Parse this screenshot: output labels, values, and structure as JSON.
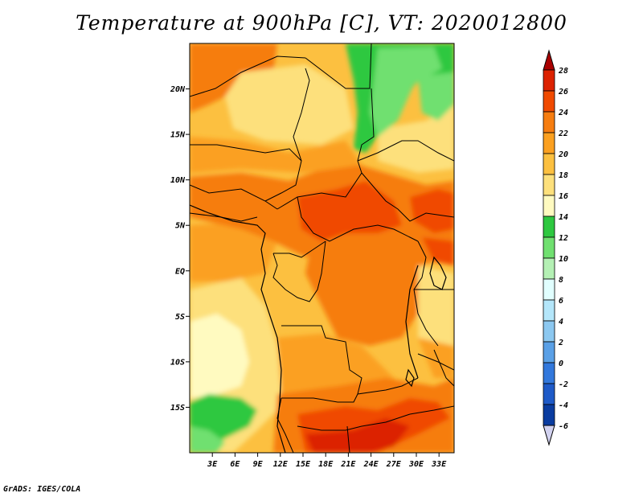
{
  "title": "Temperature at 900hPa [C], VT: 2020012800",
  "credit": "GrADS: IGES/COLA",
  "chart_data": {
    "type": "heatmap",
    "title": "Temperature at 900hPa [C], VT: 2020012800",
    "x_axis": {
      "unit": "longitude",
      "range": [
        0,
        35
      ],
      "ticks": [
        {
          "value": 3,
          "label": "3E"
        },
        {
          "value": 6,
          "label": "6E"
        },
        {
          "value": 9,
          "label": "9E"
        },
        {
          "value": 12,
          "label": "12E"
        },
        {
          "value": 15,
          "label": "15E"
        },
        {
          "value": 18,
          "label": "18E"
        },
        {
          "value": 21,
          "label": "21E"
        },
        {
          "value": 24,
          "label": "24E"
        },
        {
          "value": 27,
          "label": "27E"
        },
        {
          "value": 30,
          "label": "30E"
        },
        {
          "value": 33,
          "label": "33E"
        }
      ]
    },
    "y_axis": {
      "unit": "latitude",
      "range": [
        -20,
        25
      ],
      "ticks": [
        {
          "value": 20,
          "label": "20N"
        },
        {
          "value": 15,
          "label": "15N"
        },
        {
          "value": 10,
          "label": "10N"
        },
        {
          "value": 5,
          "label": "5N"
        },
        {
          "value": 0,
          "label": "EQ"
        },
        {
          "value": -5,
          "label": "5S"
        },
        {
          "value": -10,
          "label": "10S"
        },
        {
          "value": -15,
          "label": "15S"
        }
      ]
    },
    "colorbar": {
      "levels": [
        28,
        26,
        24,
        22,
        20,
        18,
        16,
        14,
        12,
        10,
        8,
        6,
        4,
        2,
        0,
        -2,
        -4,
        -6
      ],
      "colors": [
        "#dc2200",
        "#f04a00",
        "#f67d10",
        "#fba020",
        "#fcc040",
        "#fde07c",
        "#fffac0",
        "#2ec840",
        "#70e070",
        "#b4f0b4",
        "#e1ffff",
        "#b4e6fa",
        "#8cc8f0",
        "#5aa0e6",
        "#3278dc",
        "#1e5ac8",
        "#0a3ca0",
        "#00106e"
      ],
      "top_triangle": "#aa0000",
      "bottom_triangle": "#d2d2f0"
    },
    "regions": [
      {
        "level": 26,
        "lon": 18,
        "lat": 5
      },
      {
        "level": 26,
        "lon": 30,
        "lat": 6
      },
      {
        "level": 26,
        "lon": 20,
        "lat": -19
      },
      {
        "level": 24,
        "lon": 22,
        "lat": -3
      },
      {
        "level": 24,
        "lon": 10,
        "lat": 6
      },
      {
        "level": 24,
        "lon": 3,
        "lat": 20
      },
      {
        "level": 22,
        "lon": 2,
        "lat": 0
      },
      {
        "level": 22,
        "lon": 28,
        "lat": -9
      },
      {
        "level": 20,
        "lon": 14,
        "lat": 18
      },
      {
        "level": 18,
        "lon": 3,
        "lat": -10
      },
      {
        "level": 18,
        "lon": 13,
        "lat": 0
      },
      {
        "level": 14,
        "lon": 27,
        "lat": 20
      },
      {
        "level": 14,
        "lon": 5,
        "lat": -16
      }
    ]
  }
}
